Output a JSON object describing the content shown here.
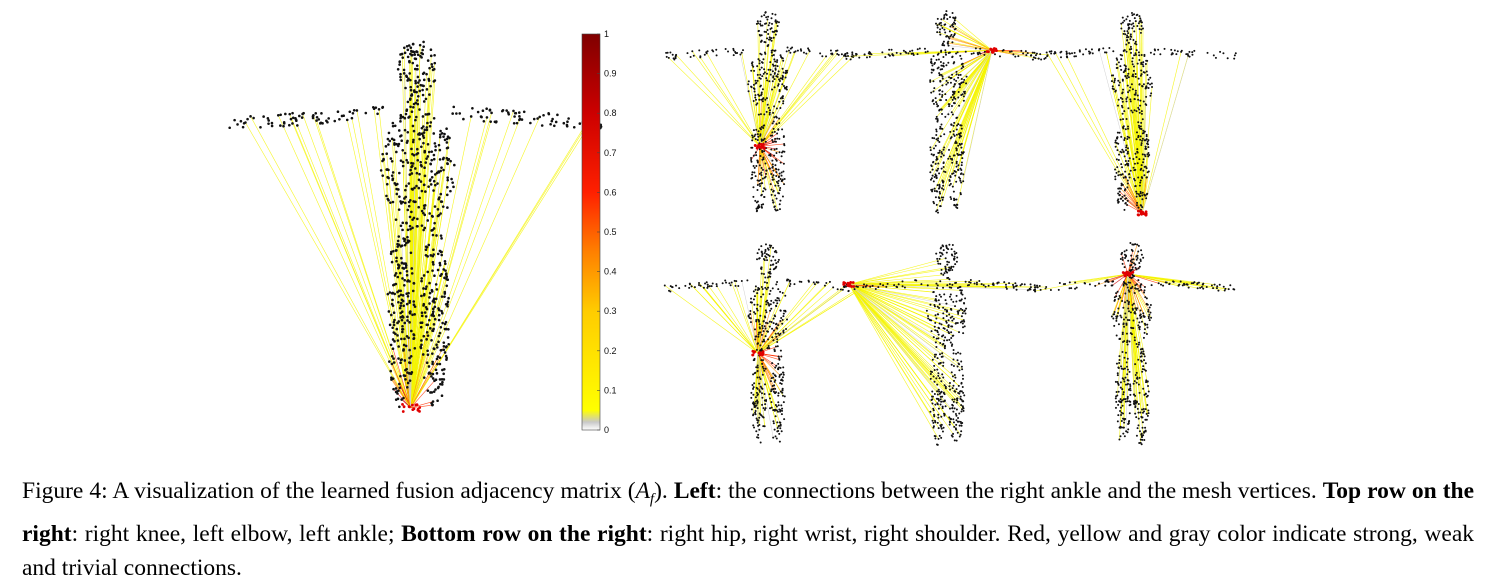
{
  "figure": {
    "colorbar": {
      "ticks": [
        "1",
        "0.9",
        "0.8",
        "0.7",
        "0.6",
        "0.5",
        "0.4",
        "0.3",
        "0.2",
        "0.1",
        "0"
      ],
      "colors": [
        "#ffffff",
        "#c8c8c8",
        "#ffff00",
        "#ffcc00",
        "#ff8000",
        "#ff2000",
        "#cc0000",
        "#800000"
      ]
    },
    "panels": {
      "left": "right ankle",
      "top_row": [
        "right knee",
        "left elbow",
        "left ankle"
      ],
      "bottom_row": [
        "right hip",
        "right wrist",
        "right shoulder"
      ]
    },
    "caption": {
      "lead": "Figure 4: A visualization of the learned fusion adjacency matrix (",
      "symbol": "A",
      "subscript": "f",
      "lead_end": "). ",
      "left_label": "Left",
      "left_text": ": the connections between the right ankle and the mesh vertices. ",
      "top_label": "Top row on the right",
      "top_text": ": right knee, left elbow, left ankle; ",
      "bottom_label": "Bottom row on the right",
      "bottom_text": ": right hip, right wrist, right shoulder. Red, yellow and gray color indicate strong, weak and trivial connections."
    }
  }
}
